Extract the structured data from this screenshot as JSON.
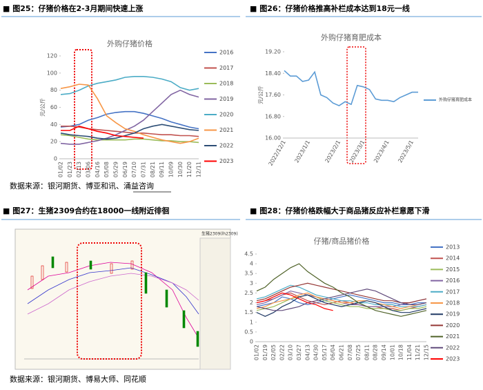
{
  "figure25": {
    "heading": "■ 图25：仔猪价格在2-3月期间快速上涨",
    "chart_data": {
      "type": "line",
      "title": "外购仔猪价格",
      "y_label": "元/公斤",
      "categories": [
        "01/02",
        "01/23",
        "02/13",
        "03/06",
        "04/16",
        "05/08",
        "05/29",
        "06/19",
        "07/10",
        "07/31",
        "08/21",
        "09/11",
        "10/09",
        "10/30",
        "11/20",
        "12/11"
      ],
      "ylim": [
        0,
        120
      ],
      "yticks": [
        0,
        20,
        40,
        60,
        80,
        100,
        120
      ],
      "series": [
        {
          "name": "2016",
          "color": "#4472c4",
          "values": [
            37,
            38,
            40,
            45,
            48,
            52,
            54,
            55,
            55,
            53,
            50,
            47,
            43,
            40,
            37,
            35
          ]
        },
        {
          "name": "2017",
          "color": "#c0504d",
          "values": [
            38,
            38,
            37,
            35,
            34,
            33,
            32,
            31,
            30,
            30,
            29,
            28,
            28,
            27,
            27,
            26
          ]
        },
        {
          "name": "2018",
          "color": "#9bbb59",
          "values": [
            28,
            27,
            25,
            23,
            22,
            22,
            22,
            22,
            23,
            23,
            22,
            21,
            21,
            20,
            20,
            19
          ]
        },
        {
          "name": "2019",
          "color": "#8064a2",
          "values": [
            18,
            17,
            17,
            19,
            21,
            24,
            28,
            33,
            38,
            45,
            55,
            65,
            75,
            80,
            75,
            72
          ]
        },
        {
          "name": "2020",
          "color": "#4bacc6",
          "values": [
            75,
            76,
            80,
            85,
            88,
            90,
            92,
            95,
            96,
            96,
            95,
            93,
            90,
            83,
            80,
            82
          ]
        },
        {
          "name": "2021",
          "color": "#f79646",
          "values": [
            82,
            84,
            87,
            86,
            70,
            50,
            42,
            35,
            32,
            28,
            25,
            22,
            20,
            18,
            20,
            24
          ]
        },
        {
          "name": "2022",
          "color": "#2c4d75",
          "values": [
            30,
            28,
            27,
            26,
            24,
            23,
            24,
            27,
            30,
            35,
            38,
            40,
            38,
            36,
            34,
            33
          ]
        },
        {
          "name": "2023",
          "color": "#ff0000",
          "values": [
            33,
            33,
            38,
            35,
            32,
            30,
            27,
            26,
            25,
            24,
            null,
            null,
            null,
            null,
            null,
            null
          ]
        }
      ]
    }
  },
  "figure26": {
    "heading": "■ 图26：仔猪价格推高补栏成本达到18元一线",
    "chart_data": {
      "type": "line",
      "title": "外购仔猪育肥成本",
      "y_label": "元/公斤",
      "categories": [
        "2022/12/1",
        null,
        null,
        null,
        "2023/1/1",
        null,
        null,
        null,
        null,
        "2023/2/1",
        null,
        null,
        null,
        "2023/3/1",
        null,
        null,
        null,
        "2023/4/1",
        null,
        null,
        null,
        "2023/5/1",
        null
      ],
      "ylim": [
        16,
        19.2
      ],
      "yticks": [
        {
          "value": 16,
          "label": "16.00"
        },
        {
          "value": 16.8,
          "label": "16.80"
        },
        {
          "value": 17.6,
          "label": "17.60"
        },
        {
          "value": 18.4,
          "label": "18.40"
        },
        {
          "value": 19.2,
          "label": "19.20"
        }
      ],
      "series": [
        {
          "name": "外购仔猪育肥成本",
          "color": "#5b9bd5",
          "values": [
            18.5,
            18.3,
            18.3,
            18.1,
            18.15,
            18.45,
            17.6,
            17.5,
            17.3,
            17.2,
            17.35,
            17.25,
            17.95,
            17.9,
            17.8,
            17.45,
            17.4,
            17.4,
            17.35,
            17.5,
            17.6,
            17.7,
            17.7
          ]
        }
      ]
    }
  },
  "source_1": "数据来源：银河期货、博亚和讯、涌益咨询",
  "figure27": {
    "heading": "■ 图27：生猪2309合约在18000一线附近徘徊",
    "panel_title": "生猪2309(lh2309)"
  },
  "figure28": {
    "heading": "■ 图28：仔猪价格跌幅大于商品猪反应补栏意愿下滑",
    "chart_data": {
      "type": "line",
      "title": "仔猪/商品猪价格",
      "categories": [
        "01/02",
        "01/19",
        "02/05",
        "02/22",
        "03/10",
        "03/27",
        "04/13",
        "04/30",
        "05/17",
        "06/04",
        "06/21",
        "07/08",
        "07/25",
        "08/11",
        "08/28",
        "09/14",
        "10/01",
        "10/18",
        "11/04",
        "11/21",
        "12/15"
      ],
      "ylim": [
        0,
        4.5
      ],
      "yticks": [
        0,
        0.5,
        1,
        1.5,
        2,
        2.5,
        3,
        3.5,
        4,
        4.5
      ],
      "series": [
        {
          "name": "2013",
          "color": "#4472c4",
          "values": [
            1.8,
            1.9,
            2.0,
            2.3,
            2.2,
            2.0,
            1.9,
            2.0,
            2.1,
            2.2,
            2.3,
            2.4,
            2.3,
            2.2,
            2.1,
            2.0,
            2.0,
            1.9,
            1.9,
            2.0,
            2.0
          ]
        },
        {
          "name": "2014",
          "color": "#c0504d",
          "values": [
            2.0,
            2.1,
            2.2,
            2.4,
            2.5,
            2.3,
            2.1,
            2.0,
            1.9,
            2.0,
            2.1,
            2.0,
            1.9,
            1.8,
            1.8,
            1.7,
            1.7,
            1.6,
            1.7,
            1.8,
            1.9
          ]
        },
        {
          "name": "2015",
          "color": "#9bbb59",
          "values": [
            1.6,
            1.7,
            1.8,
            2.0,
            2.2,
            2.3,
            2.4,
            2.3,
            2.1,
            2.0,
            1.9,
            1.8,
            1.8,
            1.7,
            1.7,
            1.7,
            1.6,
            1.6,
            1.7,
            1.7,
            1.8
          ]
        },
        {
          "name": "2016",
          "color": "#8064a2",
          "values": [
            1.9,
            2.0,
            2.2,
            2.4,
            2.6,
            2.5,
            2.4,
            2.3,
            2.2,
            2.1,
            2.0,
            1.9,
            1.9,
            1.8,
            1.8,
            1.8,
            1.8,
            1.9,
            2.0,
            2.1,
            2.2
          ]
        },
        {
          "name": "2017",
          "color": "#4bacc6",
          "values": [
            2.2,
            2.3,
            2.5,
            2.7,
            2.9,
            2.8,
            2.6,
            2.4,
            2.3,
            2.2,
            2.1,
            2.1,
            2.0,
            2.0,
            1.9,
            1.9,
            1.9,
            1.8,
            1.8,
            1.8,
            1.9
          ]
        },
        {
          "name": "2018",
          "color": "#f79646",
          "values": [
            1.7,
            1.8,
            2.0,
            2.1,
            2.2,
            2.4,
            2.5,
            2.3,
            2.2,
            2.1,
            2.0,
            2.0,
            2.1,
            2.1,
            2.0,
            1.9,
            1.8,
            1.7,
            1.8,
            1.9,
            2.0
          ]
        },
        {
          "name": "2019",
          "color": "#1f3864",
          "values": [
            1.5,
            1.3,
            1.5,
            1.8,
            2.0,
            2.3,
            2.4,
            2.2,
            2.0,
            1.9,
            1.8,
            1.9,
            2.0,
            2.1,
            2.0,
            1.8,
            1.6,
            1.5,
            1.5,
            1.6,
            1.7
          ]
        },
        {
          "name": "2020",
          "color": "#943634",
          "values": [
            2.1,
            2.2,
            2.4,
            2.6,
            2.8,
            2.9,
            3.0,
            2.9,
            2.8,
            2.7,
            2.6,
            2.5,
            2.4,
            2.3,
            2.2,
            2.1,
            2.1,
            2.0,
            2.0,
            2.1,
            2.2
          ]
        },
        {
          "name": "2021",
          "color": "#4f6228",
          "values": [
            2.6,
            2.8,
            3.2,
            3.5,
            3.8,
            4.0,
            3.6,
            3.3,
            3.0,
            2.8,
            2.5,
            2.3,
            2.0,
            1.8,
            1.6,
            1.5,
            1.4,
            1.3,
            1.4,
            1.5,
            1.6
          ]
        },
        {
          "name": "2022",
          "color": "#604a7b",
          "values": [
            1.8,
            1.7,
            1.6,
            1.6,
            1.7,
            1.8,
            2.0,
            2.1,
            2.2,
            2.3,
            2.4,
            2.5,
            2.6,
            2.7,
            2.6,
            2.4,
            2.2,
            2.0,
            1.9,
            1.9,
            2.0
          ]
        },
        {
          "name": "2023",
          "color": "#ff0000",
          "values": [
            2.0,
            2.1,
            2.3,
            2.5,
            2.4,
            2.2,
            2.0,
            1.9,
            1.7,
            1.6,
            null,
            null,
            null,
            null,
            null,
            null,
            null,
            null,
            null,
            null,
            null
          ]
        }
      ]
    }
  },
  "source_2": "数据来源：银河期货、博易大师、同花顺"
}
